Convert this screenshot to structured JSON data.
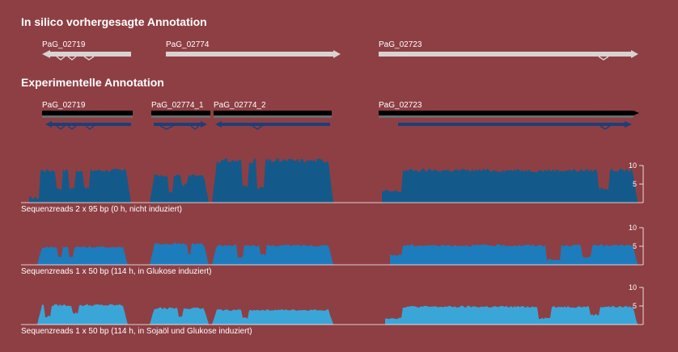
{
  "sections": {
    "predicted_title": "In silico vorhergesagte Annotation",
    "experimental_title": "Experimentelle Annotation"
  },
  "predicted_genes": [
    "PaG_02719",
    "PaG_02774",
    "PaG_02723"
  ],
  "experimental_genes": [
    "PaG_02719",
    "PaG_02774_1",
    "PaG_02774_2",
    "PaG_02723"
  ],
  "tracks": [
    {
      "caption": "Sequenzreads 2 x 95 bp (0 h, nicht induziert)",
      "ticks": [
        "10",
        "5"
      ],
      "color": "#135a8a"
    },
    {
      "caption": "Sequenzreads 1 x 50 bp (114 h, in Glukose induziert)",
      "ticks": [
        "10",
        "5"
      ],
      "color": "#1d7cbc"
    },
    {
      "caption": "Sequenzreads 1 x 50 bp (114 h, in Sojaöl und Glukose induziert)",
      "ticks": [
        "10",
        "5"
      ],
      "color": "#3aa6d8"
    }
  ],
  "colors": {
    "background": "#8e3f44",
    "predicted_arrow": "#d9d2d2",
    "experimental_bar": "#000000",
    "strand_arrow": "#1c3f7a"
  }
}
